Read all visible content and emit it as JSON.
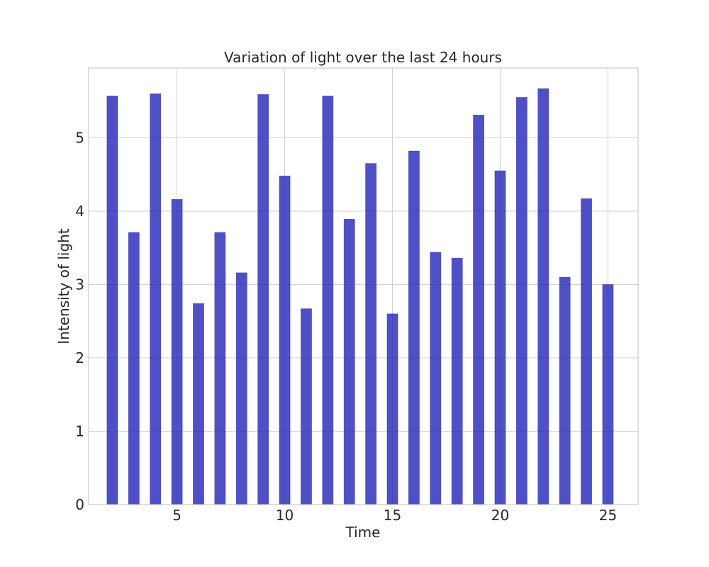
{
  "chart_data": {
    "type": "bar",
    "title": "Variation of light over the last 24 hours",
    "xlabel": "Time",
    "ylabel": "Intensity of light",
    "x": [
      2,
      3,
      4,
      5,
      6,
      7,
      8,
      9,
      10,
      11,
      12,
      13,
      14,
      15,
      16,
      17,
      18,
      19,
      20,
      21,
      22,
      23,
      24,
      25
    ],
    "values": [
      5.57,
      3.71,
      5.6,
      4.16,
      2.74,
      3.71,
      3.16,
      5.59,
      4.48,
      2.67,
      5.57,
      3.89,
      4.65,
      2.6,
      4.82,
      3.44,
      3.36,
      5.31,
      4.55,
      5.55,
      5.67,
      3.1,
      4.17,
      3.0
    ],
    "xlim": [
      0.9,
      26.4
    ],
    "ylim": [
      0,
      5.95
    ],
    "xticks": [
      5,
      10,
      15,
      20,
      25
    ],
    "yticks": [
      0,
      1,
      2,
      3,
      4,
      5
    ],
    "bar_width": 0.5,
    "bar_color": "#2424b8",
    "bar_opacity": 0.8,
    "grid": true,
    "legend": "none"
  }
}
